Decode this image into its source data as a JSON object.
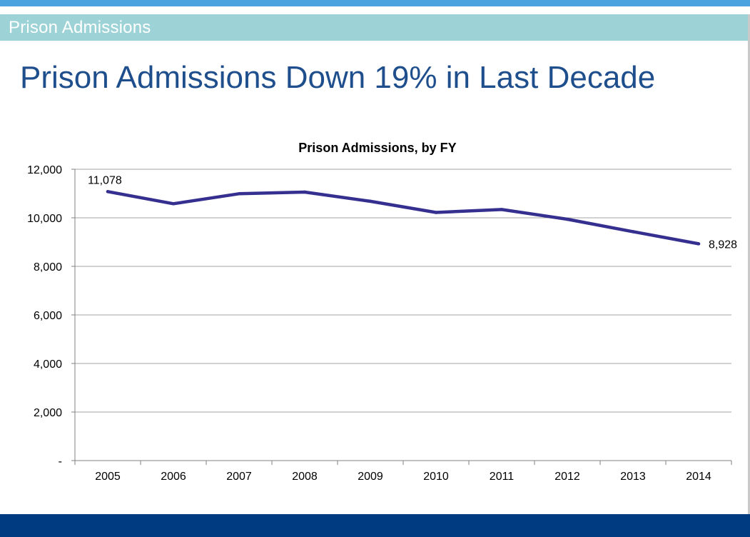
{
  "header": {
    "section_label": "Prison Admissions"
  },
  "slide": {
    "title": "Prison Admissions Down 19% in Last Decade"
  },
  "colors": {
    "top_stripe": "#4aa3df",
    "header_band": "#9dd3d6",
    "title_text": "#1f4e8c",
    "footer_band": "#003a80",
    "line": "#35308f",
    "grid": "#a6a6a6"
  },
  "chart_data": {
    "type": "line",
    "title": "Prison Admissions, by FY",
    "xlabel": "",
    "ylabel": "",
    "categories": [
      "2005",
      "2006",
      "2007",
      "2008",
      "2009",
      "2010",
      "2011",
      "2012",
      "2013",
      "2014"
    ],
    "series": [
      {
        "values": [
          11078,
          10580,
          10990,
          11060,
          10680,
          10220,
          10340,
          9940,
          9430,
          8928
        ]
      }
    ],
    "ylim": [
      0,
      12000
    ],
    "yticks": [
      0,
      2000,
      4000,
      6000,
      8000,
      10000,
      12000
    ],
    "ytick_labels": [
      "-",
      "2,000",
      "4,000",
      "6,000",
      "8,000",
      "10,000",
      "12,000"
    ],
    "data_labels": [
      {
        "index": 0,
        "text": "11,078"
      },
      {
        "index": 9,
        "text": "8,928"
      }
    ],
    "grid": true,
    "legend": "none"
  }
}
